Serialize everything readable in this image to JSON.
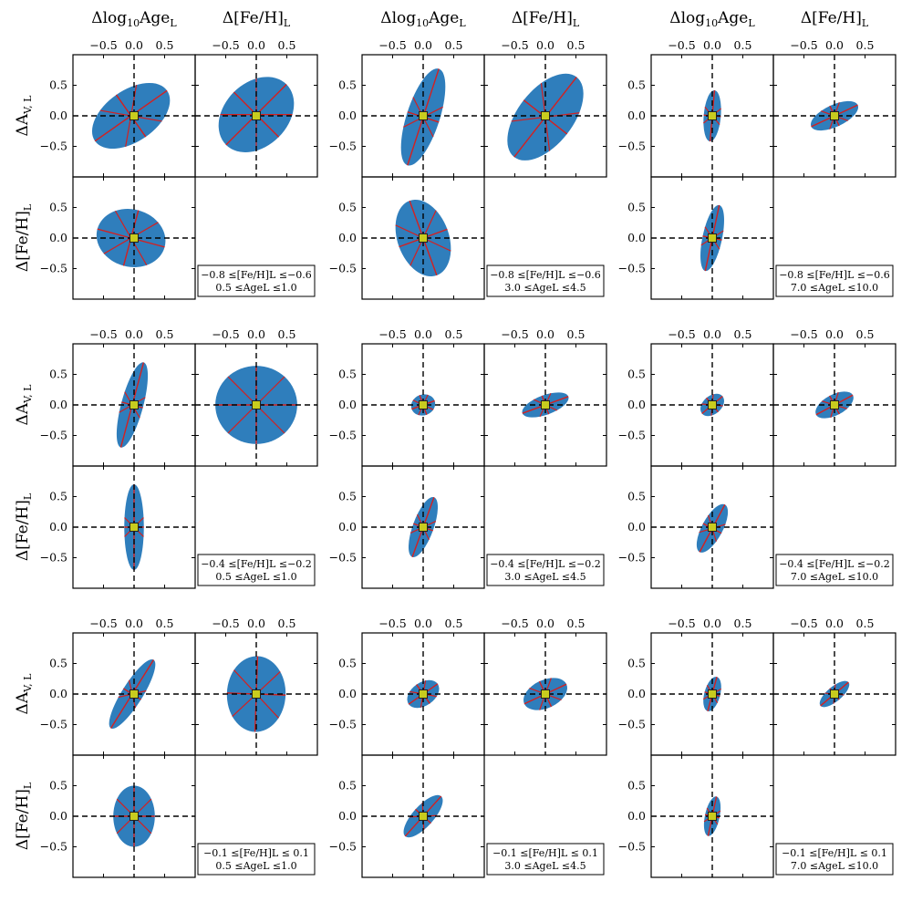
{
  "figure_description_labels": {
    "col_title_age": "Δlog₁₀Age",
    "col_title_feh": "Δ[Fe/H]",
    "row_title_av": "ΔA",
    "row_title_feh": "Δ[Fe/H]"
  },
  "axis_labels": {
    "age_main": "Δlog",
    "age_sub1": "10",
    "age_mid": "Age",
    "age_sub2": "L",
    "feh_main": "Δ[Fe/H]",
    "feh_sub": "L",
    "av_main": "ΔA",
    "av_sub": "V, L"
  },
  "colors": {
    "ellipse": "#2f7ebc",
    "axis_line": "#d42020",
    "marker": "#c8cc1e",
    "marker_edge": "#222222"
  },
  "chart_data": {
    "type": "scatter",
    "description": "Grid of 3x3 corner-plot groups showing 1-sigma error ellipses with principal axes",
    "x_ticks": [
      "−0.5",
      "0.0",
      "0.5"
    ],
    "y_ticks": [
      "0.5",
      "0.0",
      "−0.5"
    ],
    "x_tick_values": [
      -0.5,
      0.0,
      0.5
    ],
    "y_tick_values": [
      0.5,
      0.0,
      -0.5
    ],
    "xlim": [
      -1.0,
      1.0
    ],
    "ylim": [
      -1.0,
      1.0
    ],
    "groups": [
      {
        "row": 0,
        "col": 0,
        "cond_feh": "−0.8 ≤[Fe/H]L ≤−0.6",
        "cond_age": "0.5 ≤AgeL ≤1.0",
        "ellipses": {
          "age_av": {
            "cx": -0.05,
            "cy": 0.0,
            "a": 0.72,
            "b": 0.42,
            "angle": -35
          },
          "feh_av": {
            "cx": 0.0,
            "cy": 0.02,
            "a": 0.7,
            "b": 0.52,
            "angle": -45
          },
          "age_feh": {
            "cx": -0.05,
            "cy": 0.0,
            "a": 0.57,
            "b": 0.47,
            "angle": 15
          }
        }
      },
      {
        "row": 0,
        "col": 1,
        "cond_feh": "−0.8 ≤[Fe/H]L ≤−0.6",
        "cond_age": "3.0 ≤AgeL ≤4.5",
        "ellipses": {
          "age_av": {
            "cx": 0.0,
            "cy": -0.02,
            "a": 0.83,
            "b": 0.27,
            "angle": -72
          },
          "feh_av": {
            "cx": 0.0,
            "cy": -0.02,
            "a": 0.83,
            "b": 0.45,
            "angle": -52
          },
          "age_feh": {
            "cx": 0.0,
            "cy": 0.0,
            "a": 0.65,
            "b": 0.42,
            "angle": 70
          }
        }
      },
      {
        "row": 0,
        "col": 2,
        "cond_feh": "−0.8 ≤[Fe/H]L ≤−0.6",
        "cond_age": "7.0 ≤AgeL ≤10.0",
        "ellipses": {
          "age_av": {
            "cx": 0.0,
            "cy": 0.0,
            "a": 0.42,
            "b": 0.14,
            "angle": -85
          },
          "feh_av": {
            "cx": 0.0,
            "cy": 0.0,
            "a": 0.42,
            "b": 0.18,
            "angle": -25
          },
          "age_feh": {
            "cx": 0.0,
            "cy": 0.0,
            "a": 0.55,
            "b": 0.16,
            "angle": -78
          }
        }
      },
      {
        "row": 1,
        "col": 0,
        "cond_feh": "−0.4 ≤[Fe/H]L ≤−0.2",
        "cond_age": "0.5 ≤AgeL ≤1.0",
        "ellipses": {
          "age_av": {
            "cx": -0.03,
            "cy": 0.0,
            "a": 0.72,
            "b": 0.18,
            "angle": -75
          },
          "feh_av": {
            "cx": 0.0,
            "cy": 0.0,
            "a": 0.67,
            "b": 0.64,
            "angle": 0
          },
          "age_feh": {
            "cx": 0.0,
            "cy": 0.0,
            "a": 0.7,
            "b": 0.16,
            "angle": -90
          }
        }
      },
      {
        "row": 1,
        "col": 1,
        "cond_feh": "−0.4 ≤[Fe/H]L ≤−0.2",
        "cond_age": "3.0 ≤AgeL ≤4.5",
        "ellipses": {
          "age_av": {
            "cx": 0.0,
            "cy": 0.0,
            "a": 0.2,
            "b": 0.17,
            "angle": -20
          },
          "feh_av": {
            "cx": 0.0,
            "cy": 0.0,
            "a": 0.4,
            "b": 0.16,
            "angle": -20
          },
          "age_feh": {
            "cx": 0.0,
            "cy": 0.0,
            "a": 0.52,
            "b": 0.17,
            "angle": -70
          }
        }
      },
      {
        "row": 1,
        "col": 2,
        "cond_feh": "−0.4 ≤[Fe/H]L ≤−0.2",
        "cond_age": "7.0 ≤AgeL ≤10.0",
        "ellipses": {
          "age_av": {
            "cx": 0.0,
            "cy": 0.0,
            "a": 0.22,
            "b": 0.15,
            "angle": -40
          },
          "feh_av": {
            "cx": 0.0,
            "cy": 0.0,
            "a": 0.34,
            "b": 0.17,
            "angle": -28
          },
          "age_feh": {
            "cx": 0.0,
            "cy": -0.02,
            "a": 0.44,
            "b": 0.17,
            "angle": -62
          }
        }
      },
      {
        "row": 2,
        "col": 0,
        "cond_feh": "−0.1 ≤[Fe/H]L ≤   0.1",
        "cond_age": "0.5 ≤AgeL ≤1.0",
        "ellipses": {
          "age_av": {
            "cx": -0.03,
            "cy": 0.0,
            "a": 0.66,
            "b": 0.17,
            "angle": -58
          },
          "feh_av": {
            "cx": 0.0,
            "cy": 0.0,
            "a": 0.62,
            "b": 0.48,
            "angle": -88
          },
          "age_feh": {
            "cx": 0.0,
            "cy": 0.0,
            "a": 0.5,
            "b": 0.34,
            "angle": -90
          }
        }
      },
      {
        "row": 2,
        "col": 1,
        "cond_feh": "−0.1 ≤[Fe/H]L ≤   0.1",
        "cond_age": "3.0 ≤AgeL ≤4.5",
        "ellipses": {
          "age_av": {
            "cx": 0.0,
            "cy": 0.0,
            "a": 0.29,
            "b": 0.19,
            "angle": -35
          },
          "feh_av": {
            "cx": 0.0,
            "cy": 0.0,
            "a": 0.38,
            "b": 0.23,
            "angle": -25
          },
          "age_feh": {
            "cx": 0.0,
            "cy": 0.0,
            "a": 0.44,
            "b": 0.17,
            "angle": -48
          }
        }
      },
      {
        "row": 2,
        "col": 2,
        "cond_feh": "−0.1 ≤[Fe/H]L ≤   0.1",
        "cond_age": "7.0 ≤AgeL ≤10.0",
        "ellipses": {
          "age_av": {
            "cx": 0.0,
            "cy": 0.0,
            "a": 0.29,
            "b": 0.13,
            "angle": -75
          },
          "feh_av": {
            "cx": 0.0,
            "cy": 0.0,
            "a": 0.3,
            "b": 0.12,
            "angle": -40
          },
          "age_feh": {
            "cx": 0.0,
            "cy": 0.0,
            "a": 0.33,
            "b": 0.12,
            "angle": -78
          }
        }
      }
    ]
  }
}
